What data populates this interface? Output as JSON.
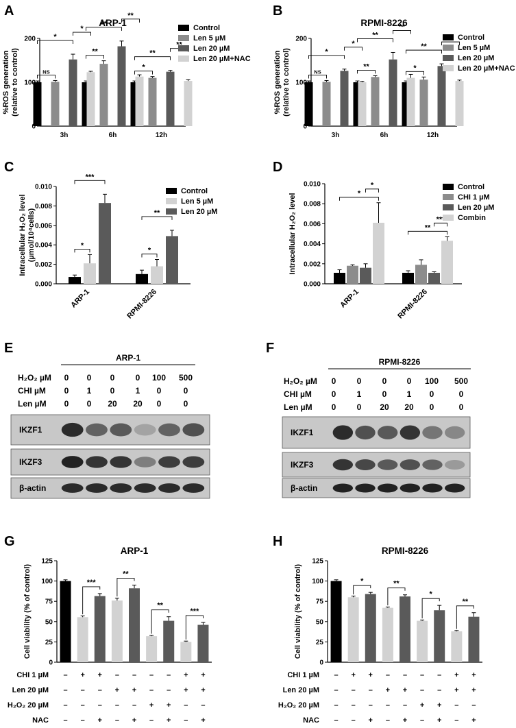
{
  "chart_data": [
    {
      "id": "A",
      "letter": "A",
      "type": "bar",
      "title": "ARP-1",
      "ylabel": [
        "%ROS generation",
        "(relative to control)"
      ],
      "ylim": [
        0,
        200
      ],
      "yticks": [
        "0",
        "100",
        "200"
      ],
      "categories": [
        "3h",
        "6h",
        "12h"
      ],
      "series": [
        {
          "name": "Control",
          "color": "#000000",
          "values": [
            100,
            100,
            100
          ],
          "errors": [
            3,
            3,
            3
          ]
        },
        {
          "name": "Len 5 µM",
          "color": "#8c8c8c",
          "values": [
            101,
            142,
            110
          ],
          "errors": [
            3,
            7,
            3
          ]
        },
        {
          "name": "Len 20 µM",
          "color": "#5a5a5a",
          "values": [
            152,
            182,
            124
          ],
          "errors": [
            12,
            12,
            3
          ]
        },
        {
          "name": "Len 20 µM+NAC",
          "color": "#d2d2d2",
          "values": [
            123,
            113,
            103
          ],
          "errors": [
            2,
            4,
            3
          ]
        }
      ],
      "annotations": [
        {
          "label": "NS",
          "group": 0,
          "from": 0,
          "to": 1
        },
        {
          "label": "*",
          "group": 0,
          "from": 0,
          "to": 2
        },
        {
          "label": "*",
          "group": 0,
          "from": 2,
          "to": 3
        },
        {
          "label": "**",
          "group": 1,
          "from": 0,
          "to": 1
        },
        {
          "label": "**",
          "group": 1,
          "from": 0,
          "to": 2
        },
        {
          "label": "**",
          "group": 1,
          "from": 2,
          "to": 3
        },
        {
          "label": "*",
          "group": 2,
          "from": 0,
          "to": 1
        },
        {
          "label": "**",
          "group": 2,
          "from": 0,
          "to": 2
        },
        {
          "label": "**",
          "group": 2,
          "from": 2,
          "to": 3
        }
      ]
    },
    {
      "id": "B",
      "letter": "B",
      "type": "bar",
      "title": "RPMI-8226",
      "ylabel": [
        "%ROS generation",
        "(relative to control)"
      ],
      "ylim": [
        0,
        200
      ],
      "yticks": [
        "0",
        "100",
        "200"
      ],
      "categories": [
        "3h",
        "6h",
        "12h"
      ],
      "series": [
        {
          "name": "Control",
          "color": "#000000",
          "values": [
            100,
            100,
            100
          ],
          "errors": [
            3,
            3,
            3
          ]
        },
        {
          "name": "Len 5 µM",
          "color": "#8c8c8c",
          "values": [
            101,
            112,
            106
          ],
          "errors": [
            3,
            3,
            6
          ]
        },
        {
          "name": "Len 20 µM",
          "color": "#5a5a5a",
          "values": [
            126,
            152,
            137
          ],
          "errors": [
            4,
            16,
            5
          ]
        },
        {
          "name": "Len 20 µM+NAC",
          "color": "#d2d2d2",
          "values": [
            100,
            110,
            103
          ],
          "errors": [
            2,
            8,
            2
          ]
        }
      ],
      "annotations": [
        {
          "label": "NS",
          "group": 0,
          "from": 0,
          "to": 1
        },
        {
          "label": "*",
          "group": 0,
          "from": 0,
          "to": 2
        },
        {
          "label": "*",
          "group": 0,
          "from": 2,
          "to": 3
        },
        {
          "label": "**",
          "group": 1,
          "from": 0,
          "to": 1
        },
        {
          "label": "**",
          "group": 1,
          "from": 0,
          "to": 2
        },
        {
          "label": "**",
          "group": 1,
          "from": 2,
          "to": 3
        },
        {
          "label": "*",
          "group": 2,
          "from": 0,
          "to": 1
        },
        {
          "label": "**",
          "group": 2,
          "from": 0,
          "to": 2
        },
        {
          "label": "**",
          "group": 2,
          "from": 2,
          "to": 3
        }
      ]
    },
    {
      "id": "C",
      "letter": "C",
      "type": "bar",
      "title": "",
      "ylabel": [
        "Intracellular H₂O₂ level",
        "(µmol/10⁴cells)"
      ],
      "ylim": [
        0,
        0.01
      ],
      "yticks": [
        "0.000",
        "0.002",
        "0.004",
        "0.006",
        "0.008",
        "0.010"
      ],
      "categories": [
        "ARP-1",
        "RPMI-8226"
      ],
      "series": [
        {
          "name": "Control",
          "color": "#000000",
          "values": [
            0.0007,
            0.001
          ],
          "errors": [
            0.0002,
            0.0004
          ]
        },
        {
          "name": "Len 5 µM",
          "color": "#d2d2d2",
          "values": [
            0.0021,
            0.0018
          ],
          "errors": [
            0.0009,
            0.0007
          ]
        },
        {
          "name": "Len 20 µM",
          "color": "#5a5a5a",
          "values": [
            0.0083,
            0.0049
          ],
          "errors": [
            0.0009,
            0.0006
          ]
        }
      ],
      "annotations": [
        {
          "label": "*",
          "group": 0,
          "from": 0,
          "to": 1
        },
        {
          "label": "***",
          "group": 0,
          "from": 0,
          "to": 2
        },
        {
          "label": "*",
          "group": 1,
          "from": 0,
          "to": 1
        },
        {
          "label": "**",
          "group": 1,
          "from": 0,
          "to": 2
        }
      ]
    },
    {
      "id": "D",
      "letter": "D",
      "type": "bar",
      "title": "",
      "ylabel": [
        "Intracellular H₂O₂ level"
      ],
      "ylim": [
        0,
        0.01
      ],
      "yticks": [
        "0.000",
        "0.002",
        "0.004",
        "0.006",
        "0.008",
        "0.010"
      ],
      "categories": [
        "ARP-1",
        "RPMI-8226"
      ],
      "series": [
        {
          "name": "Control",
          "color": "#000000",
          "values": [
            0.0011,
            0.0011
          ],
          "errors": [
            0.0003,
            0.0002
          ]
        },
        {
          "name": "CHI 1 µM",
          "color": "#8c8c8c",
          "values": [
            0.0018,
            0.0019
          ],
          "errors": [
            0.0001,
            0.0005
          ]
        },
        {
          "name": "Len 20 µM",
          "color": "#5a5a5a",
          "values": [
            0.0016,
            0.0011
          ],
          "errors": [
            0.0004,
            0.0001
          ]
        },
        {
          "name": "Combin",
          "color": "#d2d2d2",
          "values": [
            0.0061,
            0.0043
          ],
          "errors": [
            0.002,
            0.0004
          ]
        }
      ],
      "annotations": [
        {
          "label": "*",
          "group": 0,
          "from": 0,
          "to": 3
        },
        {
          "label": "*",
          "group": 0,
          "from": 2,
          "to": 3
        },
        {
          "label": "**",
          "group": 1,
          "from": 0,
          "to": 3
        },
        {
          "label": "***",
          "group": 1,
          "from": 2,
          "to": 3
        }
      ]
    },
    {
      "id": "G",
      "letter": "G",
      "type": "bar",
      "title": "ARP-1",
      "ylabel": [
        "Cell viability (% of control)"
      ],
      "ylim": [
        0,
        125
      ],
      "yticks": [
        "0",
        "25",
        "50",
        "75",
        "100",
        "125"
      ],
      "values": [
        100,
        55.5,
        81.5,
        76,
        91,
        32,
        51,
        25,
        46
      ],
      "errors": [
        1.5,
        1.5,
        3,
        3,
        4,
        1,
        5,
        1,
        3
      ],
      "colors": [
        "#000000",
        "#d2d2d2",
        "#5a5a5a",
        "#d2d2d2",
        "#5a5a5a",
        "#d2d2d2",
        "#5a5a5a",
        "#d2d2d2",
        "#5a5a5a"
      ],
      "pairs": [
        {
          "from": 1,
          "to": 2,
          "label": "***"
        },
        {
          "from": 3,
          "to": 4,
          "label": "**"
        },
        {
          "from": 5,
          "to": 6,
          "label": "**"
        },
        {
          "from": 7,
          "to": 8,
          "label": "***"
        }
      ],
      "conditions": [
        {
          "label": "CHI 1 µM",
          "marks": [
            "–",
            "+",
            "+",
            "–",
            "–",
            "–",
            "–",
            "+",
            "+"
          ]
        },
        {
          "label": "Len 20 µM",
          "marks": [
            "–",
            "–",
            "–",
            "+",
            "+",
            "–",
            "–",
            "+",
            "+"
          ]
        },
        {
          "label": "H₂O₂ 20 µM",
          "marks": [
            "–",
            "–",
            "–",
            "–",
            "–",
            "+",
            "+",
            "–",
            "–"
          ]
        },
        {
          "label": "NAC",
          "marks": [
            "–",
            "–",
            "+",
            "–",
            "+",
            "–",
            "+",
            "–",
            "+"
          ]
        }
      ]
    },
    {
      "id": "H",
      "letter": "H",
      "type": "bar",
      "title": "RPMI-8226",
      "ylabel": [
        "Cell viability (% of control)"
      ],
      "ylim": [
        0,
        125
      ],
      "yticks": [
        "0",
        "25",
        "50",
        "75",
        "100",
        "125"
      ],
      "values": [
        100,
        80,
        84,
        67,
        81,
        51,
        64,
        38,
        56
      ],
      "errors": [
        1.5,
        1.5,
        2,
        1,
        2,
        1,
        6,
        1,
        5
      ],
      "colors": [
        "#000000",
        "#d2d2d2",
        "#5a5a5a",
        "#d2d2d2",
        "#5a5a5a",
        "#d2d2d2",
        "#5a5a5a",
        "#d2d2d2",
        "#5a5a5a"
      ],
      "pairs": [
        {
          "from": 1,
          "to": 2,
          "label": "*"
        },
        {
          "from": 3,
          "to": 4,
          "label": "**"
        },
        {
          "from": 5,
          "to": 6,
          "label": "*"
        },
        {
          "from": 7,
          "to": 8,
          "label": "**"
        }
      ],
      "conditions": [
        {
          "label": "CHI 1 µM",
          "marks": [
            "–",
            "+",
            "+",
            "–",
            "–",
            "–",
            "–",
            "+",
            "+"
          ]
        },
        {
          "label": "Len 20 µM",
          "marks": [
            "–",
            "–",
            "–",
            "+",
            "+",
            "–",
            "–",
            "+",
            "+"
          ]
        },
        {
          "label": "H₂O₂ 20 µM",
          "marks": [
            "–",
            "–",
            "–",
            "–",
            "–",
            "+",
            "+",
            "–",
            "–"
          ]
        },
        {
          "label": "NAC",
          "marks": [
            "–",
            "–",
            "+",
            "–",
            "+",
            "–",
            "+",
            "–",
            "+"
          ]
        }
      ]
    }
  ],
  "blots": [
    {
      "id": "E",
      "letter": "E",
      "cell_line": "ARP-1",
      "conditions": [
        {
          "label": "H₂O₂ µM",
          "values": [
            "0",
            "0",
            "0",
            "0",
            "100",
            "500"
          ]
        },
        {
          "label": "CHI  µM",
          "values": [
            "0",
            "1",
            "0",
            "1",
            "0",
            "0"
          ]
        },
        {
          "label": "Len  µM",
          "values": [
            "0",
            "0",
            "20",
            "20",
            "0",
            "0"
          ]
        }
      ],
      "proteins": [
        {
          "name": "IKZF1",
          "intensity": [
            0.85,
            0.55,
            0.6,
            0.2,
            0.55,
            0.65
          ]
        },
        {
          "name": "IKZF3",
          "intensity": [
            0.9,
            0.8,
            0.8,
            0.4,
            0.75,
            0.75
          ]
        },
        {
          "name": "β-actin",
          "intensity": [
            0.85,
            0.85,
            0.85,
            0.85,
            0.85,
            0.85
          ]
        }
      ]
    },
    {
      "id": "F",
      "letter": "F",
      "cell_line": "RPMI-8226",
      "conditions": [
        {
          "label": "H₂O₂ µM",
          "values": [
            "0",
            "0",
            "0",
            "0",
            "100",
            "500"
          ]
        },
        {
          "label": "CHI  µM",
          "values": [
            "0",
            "1",
            "0",
            "1",
            "0",
            "0"
          ]
        },
        {
          "label": "Len  µM",
          "values": [
            "0",
            "0",
            "20",
            "20",
            "0",
            "0"
          ]
        }
      ],
      "proteins": [
        {
          "name": "IKZF1",
          "intensity": [
            0.85,
            0.65,
            0.6,
            0.8,
            0.45,
            0.35
          ]
        },
        {
          "name": "IKZF3",
          "intensity": [
            0.8,
            0.7,
            0.6,
            0.65,
            0.55,
            0.25
          ]
        },
        {
          "name": "β-actin",
          "intensity": [
            0.9,
            0.9,
            0.9,
            0.9,
            0.9,
            0.9
          ]
        }
      ]
    }
  ]
}
